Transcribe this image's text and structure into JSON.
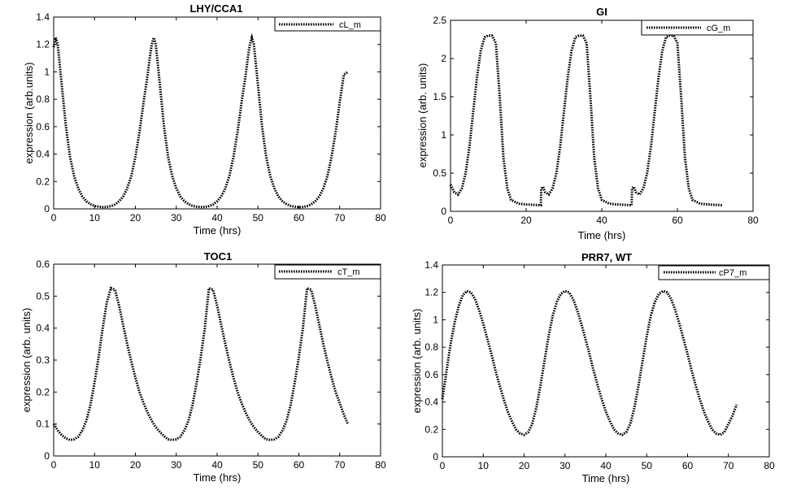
{
  "chart_data": [
    {
      "type": "line",
      "title": "LHY/CCA1",
      "xlabel": "Time (hrs)",
      "ylabel": "expression (arb.units)",
      "xlim": [
        0,
        80
      ],
      "ylim": [
        0,
        1.4
      ],
      "xticks": [
        "0",
        "10",
        "20",
        "30",
        "40",
        "50",
        "60",
        "70",
        "80"
      ],
      "yticks": [
        "0",
        "0.2",
        "0.4",
        "0.6",
        "0.8",
        "1",
        "1.2",
        "1.4"
      ],
      "legend": "top-right",
      "series": [
        {
          "name": "cL_m",
          "x": [
            0,
            0.5,
            1,
            2,
            3,
            4,
            5,
            6,
            7,
            8,
            9,
            10,
            11,
            12,
            13,
            14,
            15,
            16,
            17,
            18,
            19,
            20,
            21,
            22,
            23,
            23.5,
            24,
            24.5,
            25,
            26,
            27,
            28,
            29,
            30,
            31,
            32,
            33,
            34,
            35,
            36,
            37,
            38,
            39,
            40,
            41,
            42,
            43,
            44,
            45,
            46,
            47,
            47.5,
            48,
            48.5,
            49,
            50,
            51,
            52,
            53,
            54,
            55,
            56,
            57,
            58,
            59,
            60,
            61,
            62,
            63,
            64,
            65,
            66,
            67,
            68,
            69,
            70,
            71,
            72
          ],
          "y": [
            1.18,
            1.25,
            1.2,
            0.9,
            0.6,
            0.38,
            0.24,
            0.15,
            0.09,
            0.055,
            0.035,
            0.022,
            0.016,
            0.013,
            0.014,
            0.02,
            0.032,
            0.055,
            0.09,
            0.15,
            0.24,
            0.38,
            0.56,
            0.78,
            0.98,
            1.1,
            1.2,
            1.25,
            1.2,
            0.9,
            0.6,
            0.38,
            0.24,
            0.15,
            0.09,
            0.055,
            0.035,
            0.022,
            0.016,
            0.013,
            0.014,
            0.02,
            0.032,
            0.055,
            0.09,
            0.15,
            0.24,
            0.38,
            0.56,
            0.78,
            0.98,
            1.1,
            1.2,
            1.25,
            1.2,
            0.9,
            0.6,
            0.38,
            0.24,
            0.15,
            0.09,
            0.055,
            0.035,
            0.022,
            0.016,
            0.013,
            0.014,
            0.02,
            0.032,
            0.055,
            0.09,
            0.15,
            0.24,
            0.38,
            0.56,
            0.78,
            0.98,
            1.0
          ]
        }
      ]
    },
    {
      "type": "line",
      "title": "GI",
      "xlabel": "Time (hrs)",
      "ylabel": "expression (arb. units)",
      "xlim": [
        0,
        80
      ],
      "ylim": [
        0,
        2.5
      ],
      "xticks": [
        "0",
        "20",
        "40",
        "60",
        "80"
      ],
      "yticks": [
        "0",
        "0.5",
        "1",
        "1.5",
        "2",
        "2.5"
      ],
      "legend": "top-right",
      "series": [
        {
          "name": "cG_m",
          "x": [
            0,
            0.5,
            1,
            2,
            3,
            4,
            5,
            6,
            7,
            8,
            9,
            10,
            11,
            12,
            13,
            14,
            15,
            16,
            18,
            20,
            22,
            23.9,
            24,
            24.5,
            25,
            26,
            27,
            28,
            29,
            30,
            31,
            32,
            33,
            34,
            35,
            36,
            37,
            38,
            39,
            40,
            42,
            44,
            46,
            47.9,
            48,
            48.5,
            49,
            50,
            51,
            52,
            53,
            54,
            55,
            56,
            57,
            58,
            59,
            60,
            61,
            62,
            63,
            64,
            66,
            68,
            70,
            72
          ],
          "y": [
            0.35,
            0.3,
            0.25,
            0.22,
            0.3,
            0.5,
            0.85,
            1.3,
            1.75,
            2.1,
            2.28,
            2.3,
            2.3,
            2.2,
            1.5,
            0.7,
            0.3,
            0.15,
            0.1,
            0.09,
            0.085,
            0.08,
            0.3,
            0.32,
            0.25,
            0.22,
            0.3,
            0.5,
            0.85,
            1.3,
            1.75,
            2.1,
            2.28,
            2.3,
            2.3,
            2.2,
            1.5,
            0.7,
            0.3,
            0.15,
            0.1,
            0.09,
            0.085,
            0.08,
            0.3,
            0.32,
            0.25,
            0.22,
            0.3,
            0.5,
            0.85,
            1.3,
            1.75,
            2.1,
            2.28,
            2.3,
            2.3,
            2.2,
            1.5,
            0.7,
            0.3,
            0.15,
            0.1,
            0.09,
            0.085,
            0.08
          ]
        }
      ]
    },
    {
      "type": "line",
      "title": "TOC1",
      "xlabel": "Time (hrs)",
      "ylabel": "expression (arb. units)",
      "xlim": [
        0,
        80
      ],
      "ylim": [
        0,
        0.6
      ],
      "xticks": [
        "0",
        "10",
        "20",
        "30",
        "40",
        "50",
        "60",
        "70",
        "80"
      ],
      "yticks": [
        "0",
        "0.1",
        "0.2",
        "0.3",
        "0.4",
        "0.5",
        "0.6"
      ],
      "legend": "top-right",
      "series": [
        {
          "name": "cT_m",
          "x": [
            0,
            1,
            2,
            3,
            4,
            5,
            6,
            7,
            8,
            9,
            10,
            11,
            12,
            13,
            14,
            15,
            16,
            17,
            18,
            19,
            20,
            21,
            22,
            23,
            24,
            25,
            26,
            27,
            28,
            29,
            30,
            31,
            32,
            33,
            34,
            35,
            36,
            37,
            38,
            39,
            40,
            41,
            42,
            43,
            44,
            45,
            46,
            47,
            48,
            49,
            50,
            51,
            52,
            53,
            54,
            55,
            56,
            57,
            58,
            59,
            60,
            61,
            62,
            63,
            64,
            65,
            66,
            67,
            68,
            69,
            70,
            71,
            72
          ],
          "y": [
            0.1,
            0.08,
            0.065,
            0.055,
            0.05,
            0.052,
            0.06,
            0.08,
            0.11,
            0.16,
            0.23,
            0.31,
            0.4,
            0.48,
            0.525,
            0.52,
            0.47,
            0.41,
            0.35,
            0.295,
            0.245,
            0.2,
            0.165,
            0.135,
            0.11,
            0.09,
            0.075,
            0.062,
            0.052,
            0.05,
            0.052,
            0.06,
            0.08,
            0.11,
            0.16,
            0.23,
            0.31,
            0.4,
            0.525,
            0.52,
            0.47,
            0.41,
            0.35,
            0.295,
            0.245,
            0.2,
            0.165,
            0.135,
            0.11,
            0.09,
            0.075,
            0.062,
            0.052,
            0.05,
            0.052,
            0.06,
            0.08,
            0.11,
            0.16,
            0.23,
            0.31,
            0.4,
            0.525,
            0.52,
            0.47,
            0.41,
            0.35,
            0.295,
            0.245,
            0.2,
            0.165,
            0.13,
            0.1
          ]
        }
      ]
    },
    {
      "type": "line",
      "title": "PRR7, WT",
      "xlabel": "Time (hrs)",
      "ylabel": "expression (arb. units)",
      "xlim": [
        0,
        80
      ],
      "ylim": [
        0,
        1.4
      ],
      "xticks": [
        "0",
        "10",
        "20",
        "30",
        "40",
        "50",
        "60",
        "70",
        "80"
      ],
      "yticks": [
        "0",
        "0.2",
        "0.4",
        "0.6",
        "0.8",
        "1",
        "1.2",
        "1.4"
      ],
      "legend": "top-right",
      "series": [
        {
          "name": "cP7_m",
          "x": [
            0,
            1,
            2,
            3,
            4,
            5,
            6,
            7,
            8,
            9,
            10,
            11,
            12,
            13,
            14,
            15,
            16,
            17,
            18,
            19,
            20,
            21,
            22,
            23,
            24,
            25,
            26,
            27,
            28,
            29,
            30,
            31,
            32,
            33,
            34,
            35,
            36,
            37,
            38,
            39,
            40,
            41,
            42,
            43,
            44,
            45,
            46,
            47,
            48,
            49,
            50,
            51,
            52,
            53,
            54,
            55,
            56,
            57,
            58,
            59,
            60,
            61,
            62,
            63,
            64,
            65,
            66,
            67,
            68,
            69,
            70,
            71,
            72
          ],
          "y": [
            0.42,
            0.62,
            0.82,
            0.98,
            1.1,
            1.18,
            1.21,
            1.2,
            1.15,
            1.07,
            0.97,
            0.86,
            0.75,
            0.63,
            0.52,
            0.42,
            0.33,
            0.26,
            0.2,
            0.17,
            0.16,
            0.18,
            0.24,
            0.36,
            0.52,
            0.7,
            0.88,
            1.03,
            1.13,
            1.19,
            1.21,
            1.2,
            1.15,
            1.07,
            0.97,
            0.86,
            0.75,
            0.63,
            0.52,
            0.42,
            0.33,
            0.26,
            0.2,
            0.17,
            0.16,
            0.18,
            0.24,
            0.36,
            0.52,
            0.7,
            0.88,
            1.03,
            1.13,
            1.19,
            1.21,
            1.2,
            1.15,
            1.07,
            0.97,
            0.86,
            0.75,
            0.63,
            0.52,
            0.42,
            0.33,
            0.26,
            0.2,
            0.17,
            0.16,
            0.18,
            0.24,
            0.3,
            0.38
          ]
        }
      ]
    }
  ]
}
